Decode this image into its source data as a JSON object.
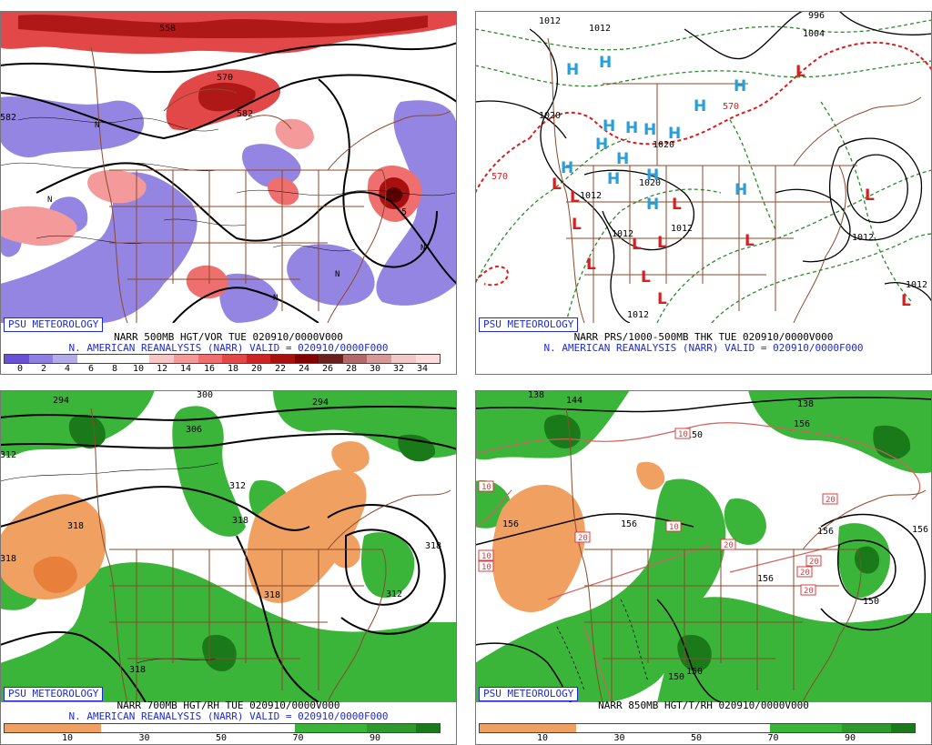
{
  "panels": [
    {
      "badge": "PSU METEOROLOGY",
      "title": "NARR 500MB HGT/VOR TUE 020910/0000V000",
      "subtitle": "N. AMERICAN REANALYSIS (NARR) VALID = 020910/0000F000",
      "colorbar": [
        "#6a50d6",
        "#8c7ee3",
        "#b4ace9",
        "#ffffff",
        "#ffffff",
        "#ffffff",
        "#f7c6c6",
        "#f49a9a",
        "#ef6e6e",
        "#e34848",
        "#cc2424",
        "#a81010",
        "#820000",
        "#6b2020",
        "#b06a6a",
        "#d49a9a",
        "#f1c8c8",
        "#ffdcdc"
      ],
      "ticks": [
        "0",
        "2",
        "4",
        "6",
        "8",
        "10",
        "12",
        "14",
        "16",
        "18",
        "20",
        "22",
        "24",
        "26",
        "28",
        "30",
        "32",
        "34"
      ],
      "labels": {
        "a": "558",
        "b": "582",
        "c": "570",
        "d": "582",
        "e": "5",
        "f": "N",
        "g": "N",
        "h": "N",
        "i": "N",
        "j": "N"
      }
    },
    {
      "badge": "PSU METEOROLOGY",
      "title": "NARR PRS/1000-500MB THK TUE 020910/0000V000",
      "subtitle": "N. AMERICAN REANALYSIS (NARR) VALID = 020910/0000F000",
      "labels": {
        "a": "1012",
        "b": "1012",
        "c": "1004",
        "d": "996",
        "e": "1020",
        "f": "1020",
        "g": "1020",
        "h": "1012",
        "i": "1012",
        "j": "1012",
        "k": "1012",
        "l": "1012",
        "m": "570",
        "n": "570",
        "o": "1012"
      },
      "high": "H",
      "low": "L"
    },
    {
      "badge": "PSU METEOROLOGY",
      "title": "NARR 700MB HGT/RH TUE 020910/0000V000",
      "subtitle": "N. AMERICAN REANALYSIS (NARR) VALID = 020910/0000F000",
      "colorbar": [
        "#f0a060",
        "#f0a060",
        "#f0a060",
        "#f0a060",
        "#ffffff",
        "#ffffff",
        "#ffffff",
        "#ffffff",
        "#ffffff",
        "#ffffff",
        "#ffffff",
        "#ffffff",
        "#3ab53a",
        "#3ab53a",
        "#3ab53a",
        "#2e9a2e",
        "#2e9a2e",
        "#1a7a1a"
      ],
      "ticks": [
        "10",
        "30",
        "50",
        "70",
        "90"
      ],
      "labels": {
        "a": "294",
        "b": "300",
        "c": "306",
        "d": "294",
        "e": "312",
        "f": "318",
        "g": "318",
        "h": "318",
        "i": "318",
        "j": "312",
        "k": "318",
        "l": "312",
        "m": "318"
      }
    },
    {
      "badge": "PSU METEOROLOGY",
      "title": "NARR 850MB HGT/T/RH 020910/0000V000",
      "subtitle": "",
      "colorbar": [
        "#f0a060",
        "#f0a060",
        "#f0a060",
        "#f0a060",
        "#ffffff",
        "#ffffff",
        "#ffffff",
        "#ffffff",
        "#ffffff",
        "#ffffff",
        "#ffffff",
        "#ffffff",
        "#3ab53a",
        "#3ab53a",
        "#3ab53a",
        "#2e9a2e",
        "#2e9a2e",
        "#1a7a1a"
      ],
      "ticks": [
        "10",
        "30",
        "50",
        "70",
        "90"
      ],
      "labels": {
        "a": "138",
        "b": "144",
        "c": "150",
        "d": "138",
        "e": "156",
        "f": "156",
        "g": "156",
        "h": "156",
        "i": "156",
        "j": "150",
        "k": "150",
        "l": "156",
        "m": "150"
      },
      "boxes": [
        "10",
        "10",
        "10",
        "10",
        "10",
        "20",
        "20",
        "20",
        "20",
        "20",
        "20",
        "10"
      ]
    }
  ]
}
